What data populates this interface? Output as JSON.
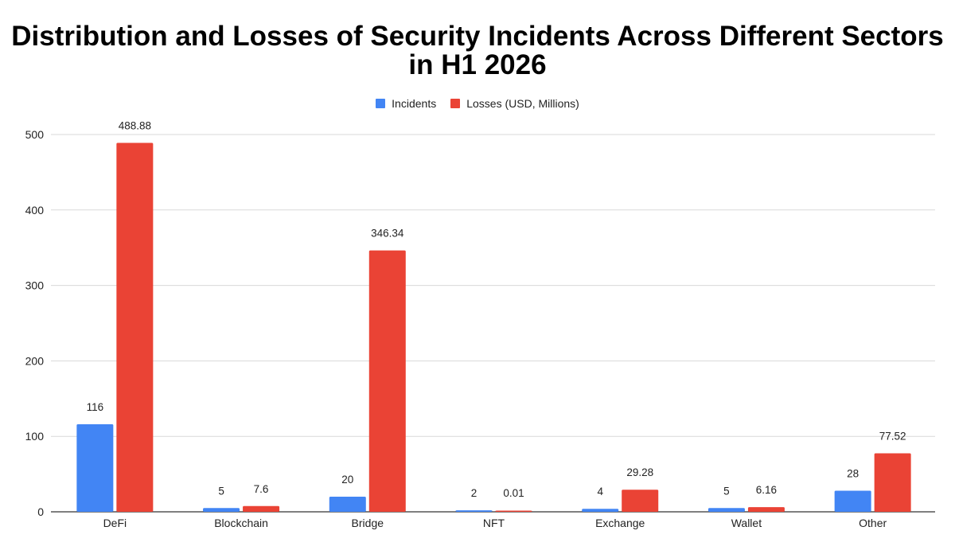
{
  "chart_data": {
    "type": "bar",
    "title": "Distribution and Losses of Security Incidents Across Different Sectors in H1 2026",
    "categories": [
      "DeFi",
      "Blockchain",
      "Bridge",
      "NFT",
      "Exchange",
      "Wallet",
      "Other"
    ],
    "series": [
      {
        "name": "Incidents",
        "color": "#4285f4",
        "values": [
          116,
          5,
          20,
          2,
          4,
          5,
          28
        ],
        "labels": [
          "116",
          "5",
          "20",
          "2",
          "4",
          "5",
          "28"
        ]
      },
      {
        "name": "Losses (USD, Millions)",
        "color": "#ea4335",
        "values": [
          488.88,
          7.6,
          346.34,
          0.01,
          29.28,
          6.16,
          77.52
        ],
        "labels": [
          "488.88",
          "7.6",
          "346.34",
          "0.01",
          "29.28",
          "6.16",
          "77.52"
        ]
      }
    ],
    "ylim": [
      0,
      500
    ],
    "yticks": [
      "0",
      "100",
      "200",
      "300",
      "400",
      "500"
    ],
    "grid": true,
    "legend_position": "top-center",
    "xlabel": "",
    "ylabel": ""
  }
}
